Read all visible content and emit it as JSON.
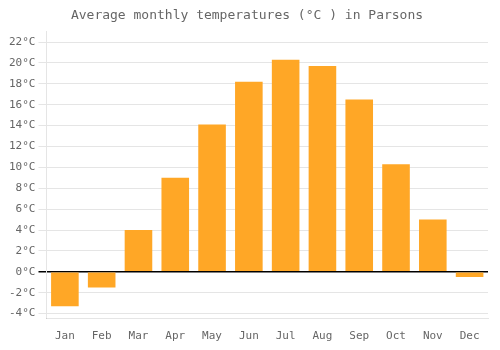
{
  "chart_data": {
    "type": "bar",
    "title": "Average monthly temperatures (°C ) in Parsons",
    "categories": [
      "Jan",
      "Feb",
      "Mar",
      "Apr",
      "May",
      "Jun",
      "Jul",
      "Aug",
      "Sep",
      "Oct",
      "Nov",
      "Dec"
    ],
    "values": [
      -3.3,
      -1.5,
      4.0,
      9.0,
      14.1,
      18.2,
      20.3,
      19.7,
      16.5,
      10.3,
      5.0,
      -0.5
    ],
    "color": "#FFA726",
    "ylim": [
      -4.5,
      23.0
    ],
    "yticks": [
      {
        "value": -4,
        "label": "-4°C"
      },
      {
        "value": -2,
        "label": "-2°C"
      },
      {
        "value": 0,
        "label": "0°C"
      },
      {
        "value": 2,
        "label": "2°C"
      },
      {
        "value": 4,
        "label": "4°C"
      },
      {
        "value": 6,
        "label": "6°C"
      },
      {
        "value": 8,
        "label": "8°C"
      },
      {
        "value": 10,
        "label": "10°C"
      },
      {
        "value": 12,
        "label": "12°C"
      },
      {
        "value": 14,
        "label": "14°C"
      },
      {
        "value": 16,
        "label": "16°C"
      },
      {
        "value": 18,
        "label": "18°C"
      },
      {
        "value": 20,
        "label": "20°C"
      },
      {
        "value": 22,
        "label": "22°C"
      }
    ],
    "grid": true
  }
}
